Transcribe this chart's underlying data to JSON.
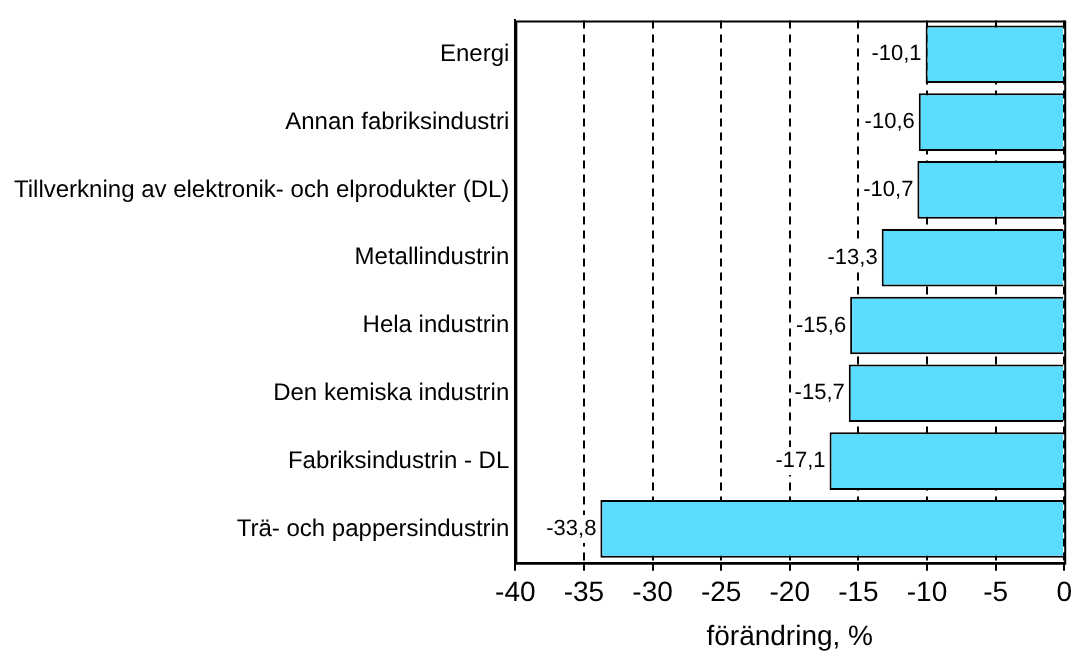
{
  "chart_data": {
    "type": "bar",
    "orientation": "horizontal",
    "xlabel": "förändring, %",
    "categories": [
      "Energi",
      "Annan fabriksindustri",
      "Tillverkning av elektronik- och elprodukter (DL)",
      "Metallindustrin",
      "Hela industrin",
      "Den kemiska industrin",
      "Fabriksindustrin - DL",
      "Trä- och pappersindustrin"
    ],
    "values": [
      -10.1,
      -10.6,
      -10.7,
      -13.3,
      -15.6,
      -15.7,
      -17.1,
      -33.8
    ],
    "value_labels": [
      "-10,1",
      "-10,6",
      "-10,7",
      "-13,3",
      "-15,6",
      "-15,7",
      "-17,1",
      "-33,8"
    ],
    "color": "#5bdcff",
    "xlim": [
      -40,
      0
    ],
    "xticks": [
      -40,
      -35,
      -30,
      -25,
      -20,
      -15,
      -10,
      -5,
      0
    ],
    "grid": "x",
    "line_style": "dashed"
  }
}
